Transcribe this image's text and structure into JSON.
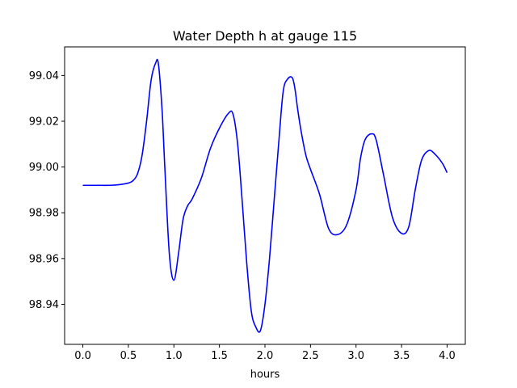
{
  "chart_data": {
    "type": "line",
    "title": "Water Depth h at gauge 115",
    "xlabel": "hours",
    "ylabel": "",
    "xlim": [
      -0.2,
      4.2
    ],
    "ylim": [
      98.9225,
      99.0525
    ],
    "grid": false,
    "legend": "none",
    "x_ticks": [
      0.0,
      0.5,
      1.0,
      1.5,
      2.0,
      2.5,
      3.0,
      3.5,
      4.0
    ],
    "x_tick_labels": [
      "0.0",
      "0.5",
      "1.0",
      "1.5",
      "2.0",
      "2.5",
      "3.0",
      "3.5",
      "4.0"
    ],
    "y_ticks": [
      98.94,
      98.96,
      98.98,
      99.0,
      99.02,
      99.04
    ],
    "y_tick_labels": [
      "98.94",
      "98.96",
      "98.98",
      "99.00",
      "99.02",
      "99.04"
    ],
    "series": [
      {
        "color": "#0000ff",
        "x": [
          0.0,
          0.1,
          0.2,
          0.3,
          0.4,
          0.5,
          0.55,
          0.6,
          0.65,
          0.7,
          0.75,
          0.8,
          0.83,
          0.87,
          0.9,
          0.95,
          1.0,
          1.05,
          1.1,
          1.15,
          1.2,
          1.3,
          1.4,
          1.5,
          1.6,
          1.65,
          1.7,
          1.75,
          1.8,
          1.85,
          1.9,
          1.95,
          2.0,
          2.05,
          2.1,
          2.15,
          2.2,
          2.25,
          2.3,
          2.33,
          2.36,
          2.4,
          2.45,
          2.5,
          2.6,
          2.7,
          2.8,
          2.9,
          3.0,
          3.05,
          3.1,
          3.17,
          3.22,
          3.3,
          3.4,
          3.5,
          3.58,
          3.65,
          3.72,
          3.8,
          3.87,
          3.95,
          4.0
        ],
        "y": [
          98.992,
          98.992,
          98.992,
          98.992,
          98.9923,
          98.993,
          98.994,
          98.997,
          99.005,
          99.02,
          99.038,
          99.0455,
          99.045,
          99.025,
          99.0,
          98.962,
          98.9505,
          98.962,
          98.977,
          98.983,
          98.986,
          98.995,
          99.008,
          99.017,
          99.0235,
          99.023,
          99.01,
          98.985,
          98.958,
          98.937,
          98.93,
          98.9285,
          98.94,
          98.96,
          98.985,
          99.01,
          99.033,
          99.0385,
          99.039,
          99.034,
          99.025,
          99.015,
          99.005,
          98.999,
          98.988,
          98.973,
          98.9705,
          98.975,
          98.99,
          99.004,
          99.012,
          99.0145,
          99.012,
          98.997,
          98.978,
          98.971,
          98.974,
          98.99,
          99.003,
          99.0072,
          99.0055,
          99.0015,
          98.9975
        ]
      }
    ]
  }
}
